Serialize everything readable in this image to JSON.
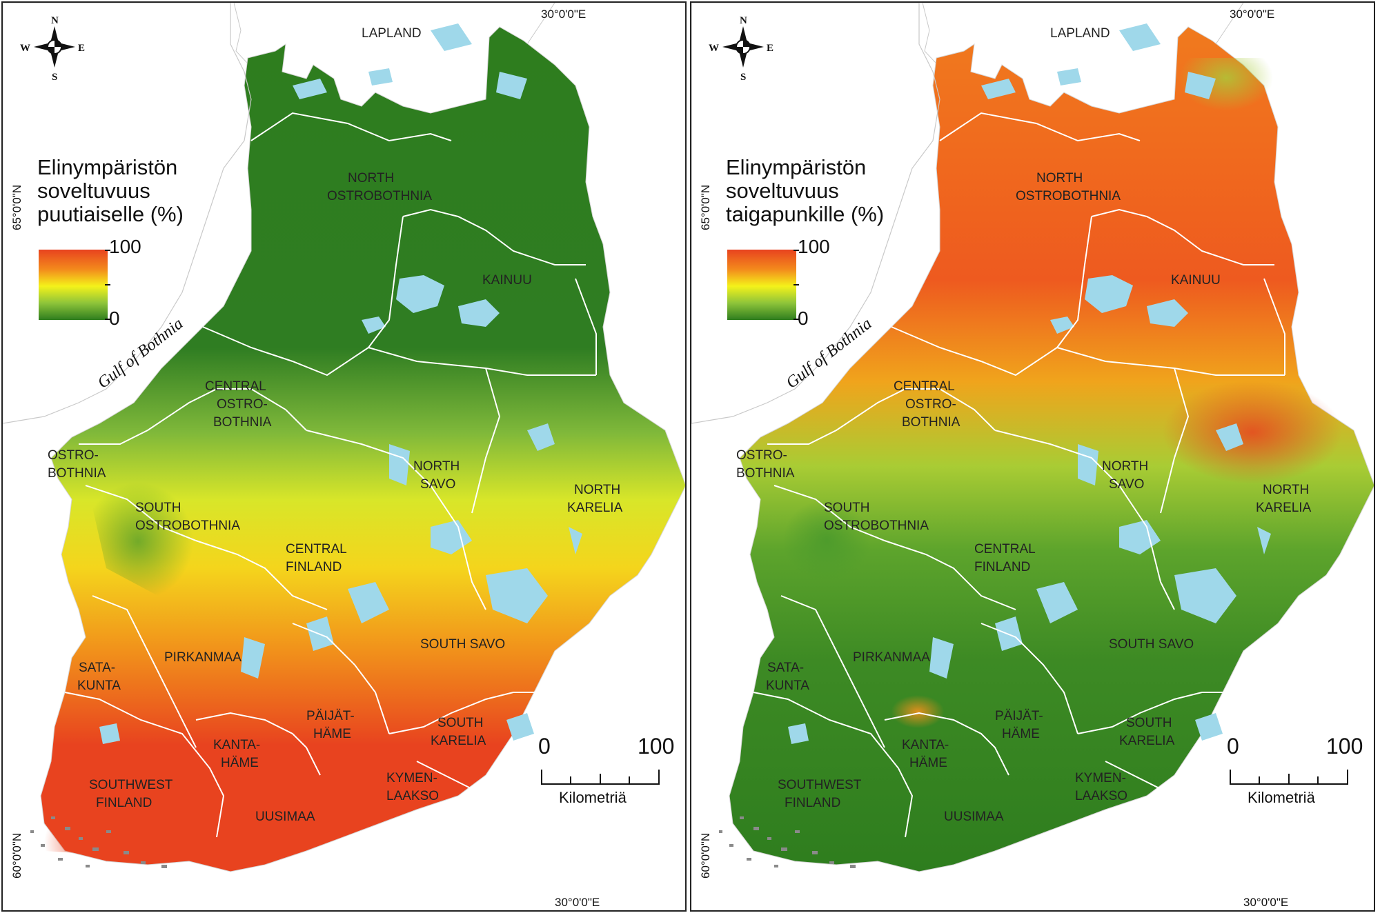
{
  "colors": {
    "high": "#e8431f",
    "mid_high": "#f38a1c",
    "mid": "#f4f21a",
    "mid_low": "#8ec43a",
    "low": "#2e7d1e",
    "water": "#9fd8ea",
    "border": "#ffffff"
  },
  "left_panel": {
    "legend_title": "Elinympäristön soveltuvuus puutiaiselle (%)",
    "legend_max": "100",
    "legend_min": "0",
    "gulf_label": "Gulf of Bothnia",
    "meridian_label_top": "30°0'0\"E",
    "meridian_label_bottom": "30°0'0\"E",
    "lat_65": "65°0'0\"N",
    "lat_60": "60°0'0\"N",
    "scale_zero": "0",
    "scale_max": "100",
    "scale_unit": "Kilometriä",
    "compass": {
      "n": "N",
      "s": "S",
      "e": "E",
      "w": "W"
    },
    "regions": {
      "lapland": "LAPLAND",
      "north_ostrobothnia_1": "NORTH",
      "north_ostrobothnia_2": "OSTROBOTHNIA",
      "kainuu": "KAINUU",
      "central_ostrobothnia_1": "CENTRAL",
      "central_ostrobothnia_2": "OSTRO-",
      "central_ostrobothnia_3": "BOTHNIA",
      "ostrobothnia_1": "OSTRO-",
      "ostrobothnia_2": "BOTHNIA",
      "north_savo_1": "NORTH",
      "north_savo_2": "SAVO",
      "north_karelia_1": "NORTH",
      "north_karelia_2": "KARELIA",
      "south_ostrobothnia_1": "SOUTH",
      "south_ostrobothnia_2": "OSTROBOTHNIA",
      "central_finland_1": "CENTRAL",
      "central_finland_2": "FINLAND",
      "pirkanmaa": "PIRKANMAA",
      "south_savo": "SOUTH SAVO",
      "satakunta_1": "SATA-",
      "satakunta_2": "KUNTA",
      "paijat_hame_1": "PÄIJÄT-",
      "paijat_hame_2": "HÄME",
      "south_karelia_1": "SOUTH",
      "south_karelia_2": "KARELIA",
      "kanta_hame_1": "KANTA-",
      "kanta_hame_2": "HÄME",
      "kymenlaakso_1": "KYMEN-",
      "kymenlaakso_2": "LAAKSO",
      "southwest_finland_1": "SOUTHWEST",
      "southwest_finland_2": "FINLAND",
      "uusimaa": "UUSIMAA"
    }
  },
  "right_panel": {
    "legend_title": "Elinympäristön soveltuvuus taigapunkille (%)",
    "legend_max": "100",
    "legend_min": "0",
    "gulf_label": "Gulf of Bothnia",
    "meridian_label_top": "30°0'0\"E",
    "meridian_label_bottom": "30°0'0\"E",
    "lat_65": "65°0'0\"N",
    "lat_60": "60°0'0\"N",
    "scale_zero": "0",
    "scale_max": "100",
    "scale_unit": "Kilometriä",
    "compass": {
      "n": "N",
      "s": "S",
      "e": "E",
      "w": "W"
    },
    "regions": {
      "lapland": "LAPLAND",
      "north_ostrobothnia_1": "NORTH",
      "north_ostrobothnia_2": "OSTROBOTHNIA",
      "kainuu": "KAINUU",
      "central_ostrobothnia_1": "CENTRAL",
      "central_ostrobothnia_2": "OSTRO-",
      "central_ostrobothnia_3": "BOTHNIA",
      "ostrobothnia_1": "OSTRO-",
      "ostrobothnia_2": "BOTHNIA",
      "north_savo_1": "NORTH",
      "north_savo_2": "SAVO",
      "north_karelia_1": "NORTH",
      "north_karelia_2": "KARELIA",
      "south_ostrobothnia_1": "SOUTH",
      "south_ostrobothnia_2": "OSTROBOTHNIA",
      "central_finland_1": "CENTRAL",
      "central_finland_2": "FINLAND",
      "pirkanmaa": "PIRKANMAA",
      "south_savo": "SOUTH SAVO",
      "satakunta_1": "SATA-",
      "satakunta_2": "KUNTA",
      "paijat_hame_1": "PÄIJÄT-",
      "paijat_hame_2": "HÄME",
      "south_karelia_1": "SOUTH",
      "south_karelia_2": "KARELIA",
      "kanta_hame_1": "KANTA-",
      "kanta_hame_2": "HÄME",
      "kymenlaakso_1": "KYMEN-",
      "kymenlaakso_2": "LAAKSO",
      "southwest_finland_1": "SOUTHWEST",
      "southwest_finland_2": "FINLAND",
      "uusimaa": "UUSIMAA"
    }
  }
}
